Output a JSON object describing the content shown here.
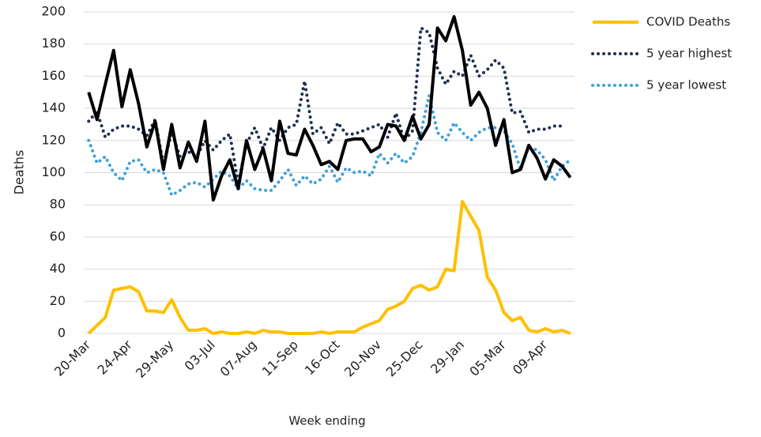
{
  "chart_data": {
    "type": "line",
    "y_label": "Deaths",
    "x_label": "Week ending",
    "categories": [
      "20-Mar",
      null,
      null,
      null,
      null,
      "24-Apr",
      null,
      null,
      null,
      null,
      "29-May",
      null,
      null,
      null,
      null,
      "03-Jul",
      null,
      null,
      null,
      null,
      "07-Aug",
      null,
      null,
      null,
      null,
      "11-Sep",
      null,
      null,
      null,
      null,
      "16-Oct",
      null,
      null,
      null,
      null,
      "20-Nov",
      null,
      null,
      null,
      null,
      "25-Dec",
      null,
      null,
      null,
      null,
      "29-Jan",
      null,
      null,
      null,
      null,
      "05-Mar",
      null,
      null,
      null,
      null,
      "09-Apr",
      null,
      null,
      null
    ],
    "series": [
      {
        "name": "COVID Deaths",
        "color": "#ffc000",
        "style": "solid",
        "values": [
          0,
          5,
          10,
          27,
          28,
          29,
          26,
          14,
          14,
          13,
          21,
          10,
          2,
          2,
          3,
          0,
          1,
          0,
          0,
          1,
          0,
          2,
          1,
          1,
          0,
          0,
          0,
          0,
          1,
          0,
          1,
          1,
          1,
          4,
          6,
          8,
          15,
          17,
          20,
          28,
          30,
          27,
          29,
          40,
          39,
          82,
          73,
          64,
          35,
          27,
          13,
          8,
          10,
          2,
          1,
          3,
          1,
          2,
          0
        ]
      },
      {
        "color": "#000000",
        "style": "solid",
        "values": [
          150,
          133,
          155,
          176,
          141,
          164,
          143,
          116,
          132,
          102,
          130,
          103,
          119,
          107,
          132,
          83,
          98,
          108,
          90,
          120,
          102,
          115,
          95,
          132,
          112,
          111,
          127,
          117,
          105,
          107,
          102,
          120,
          121,
          121,
          113,
          116,
          130,
          129,
          120,
          135,
          121,
          130,
          190,
          182,
          197,
          176,
          142,
          150,
          140,
          117,
          133,
          100,
          102,
          117,
          109,
          96,
          108,
          104,
          97
        ]
      },
      {
        "name": "5 year highest",
        "color": "#1f3050",
        "style": "dotted",
        "values": [
          132,
          138,
          122,
          127,
          129,
          129,
          127,
          123,
          133,
          105,
          125,
          110,
          113,
          110,
          120,
          114,
          120,
          124,
          93,
          118,
          128,
          115,
          128,
          120,
          128,
          130,
          157,
          124,
          128,
          118,
          131,
          124,
          124,
          126,
          128,
          130,
          122,
          137,
          120,
          126,
          190,
          187,
          165,
          155,
          163,
          160,
          173,
          160,
          164,
          170,
          165,
          137,
          138,
          125,
          127,
          127,
          129,
          129,
          null
        ]
      },
      {
        "name": "5 year lowest",
        "color": "#41a0d8",
        "style": "dotted",
        "values": [
          120,
          106,
          110,
          100,
          95,
          107,
          108,
          100,
          102,
          100,
          86,
          89,
          93,
          94,
          91,
          96,
          101,
          98,
          90,
          95,
          90,
          89,
          89,
          95,
          102,
          92,
          98,
          93,
          96,
          104,
          94,
          103,
          100,
          101,
          98,
          112,
          106,
          112,
          106,
          110,
          125,
          148,
          125,
          120,
          131,
          125,
          120,
          125,
          128,
          128,
          126,
          118,
          102,
          116,
          114,
          108,
          95,
          104,
          108
        ]
      }
    ],
    "ylim": [
      0,
      200
    ],
    "yticks": [
      0,
      20,
      40,
      60,
      80,
      100,
      120,
      140,
      160,
      180,
      200
    ],
    "grid": true
  }
}
